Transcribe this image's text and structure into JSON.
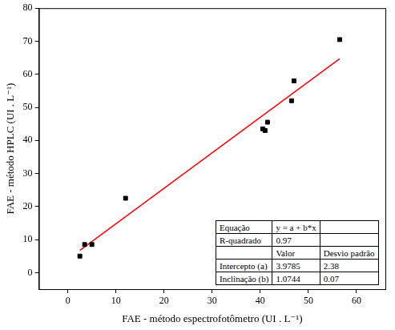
{
  "chart_data": {
    "type": "scatter",
    "x_label": "FAE - método espectrofotômetro (UI . L⁻¹)",
    "y_label": "FAE - método HPLC (UI . L⁻¹)",
    "x": [
      2.5,
      3.5,
      5,
      12,
      40.5,
      41,
      41.5,
      46.5,
      47,
      56.5
    ],
    "values": [
      5,
      8.5,
      8.5,
      22.5,
      43.5,
      43,
      45.5,
      52,
      58,
      70.5
    ],
    "color": "#000000",
    "marker": "square",
    "fit_line": {
      "x": [
        2.5,
        56.5
      ],
      "y": [
        6.7,
        64.7
      ],
      "color": "#ff0000",
      "line_style": "solid"
    },
    "xlim": [
      -6,
      66
    ],
    "xticks": [
      0,
      10,
      20,
      30,
      40,
      50,
      60
    ],
    "ylim": [
      -5,
      80
    ],
    "yticks": [
      0,
      10,
      20,
      30,
      40,
      50,
      60,
      70,
      80
    ],
    "grid": false,
    "table": {
      "rows": [
        [
          "Equação",
          "y = a + b*x",
          ""
        ],
        [
          "R-quadrado",
          "0.97",
          ""
        ],
        [
          "",
          "Valor",
          "Desvio padrão"
        ],
        [
          "Intercepto (a)",
          "3.9785",
          "2.38"
        ],
        [
          "Inclinação (b)",
          "1.0744",
          "0.07"
        ]
      ]
    }
  }
}
